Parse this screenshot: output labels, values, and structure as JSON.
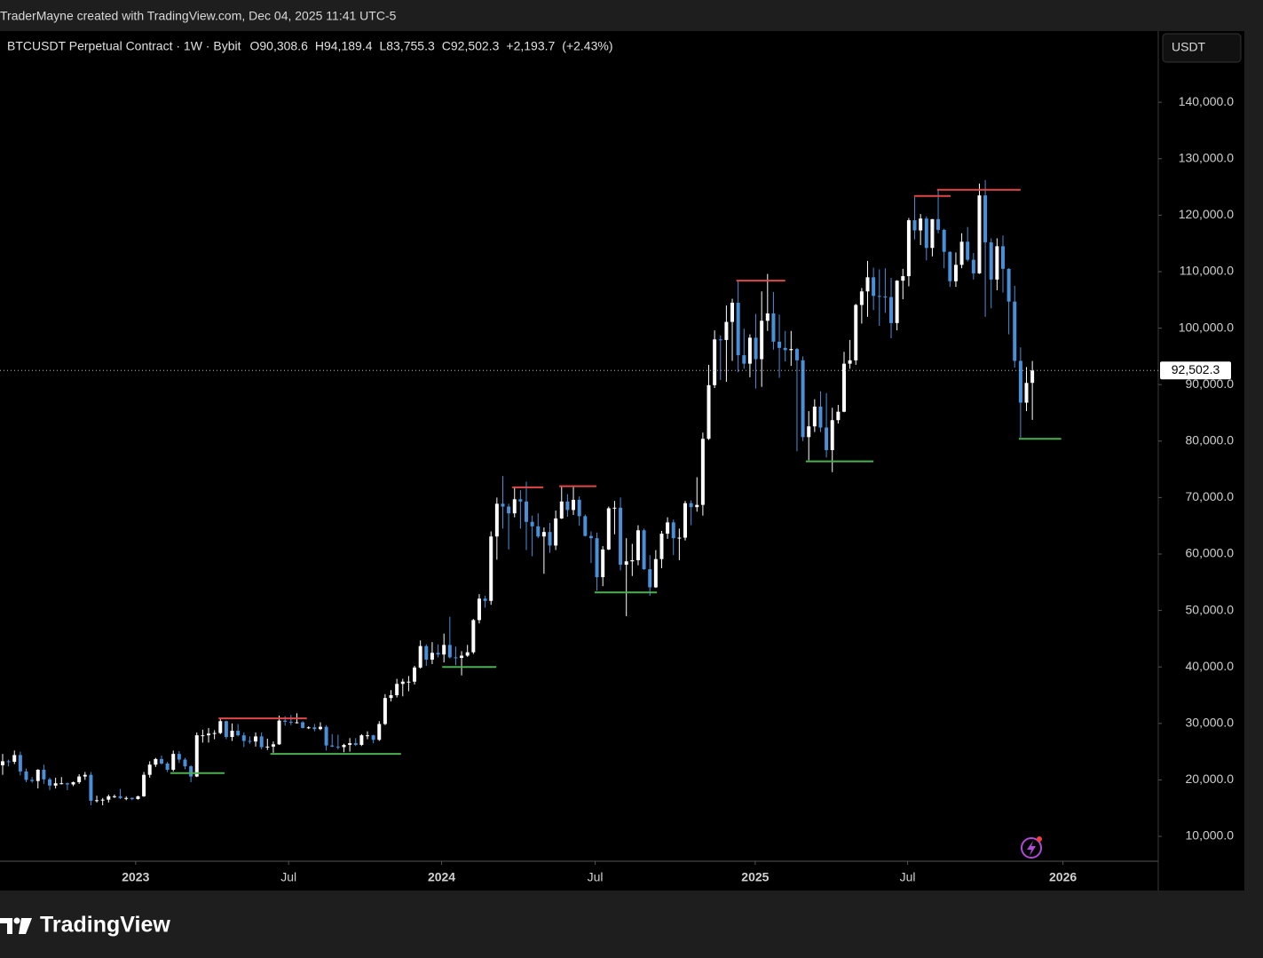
{
  "header": {
    "title": "TraderMayne created with TradingView.com, Dec 04, 2025 11:41 UTC-5"
  },
  "footer": {
    "logo": "TradingView"
  },
  "chart_data": {
    "type": "candlestick",
    "symbol": "BTCUSDT Perpetual Contract · 1W · Bybit",
    "legend_values": [
      {
        "value": 90308.6,
        "label": "O90,308.6"
      },
      {
        "value": 94189.4,
        "label": "H94,189.4"
      },
      {
        "value": 83755.3,
        "label": "L83,755.3"
      },
      {
        "value": 92502.3,
        "label": "C92,502.3"
      },
      {
        "value": 2193.7,
        "label": "+2,193.7"
      },
      {
        "value": 2.43,
        "label": "(+2.43%)"
      }
    ],
    "currency": "USDT",
    "up_color": "#ffffff",
    "down_color": "#4a90d9",
    "last_price": {
      "value": 92502.3,
      "label": "92,502.3"
    },
    "ylim": [
      5600,
      152600
    ],
    "yticks": [
      {
        "value": 10000,
        "label": "10,000.0"
      },
      {
        "value": 20000,
        "label": "20,000.0"
      },
      {
        "value": 30000,
        "label": "30,000.0"
      },
      {
        "value": 40000,
        "label": "40,000.0"
      },
      {
        "value": 50000,
        "label": "50,000.0"
      },
      {
        "value": 60000,
        "label": "60,000.0"
      },
      {
        "value": 70000,
        "label": "70,000.0"
      },
      {
        "value": 80000,
        "label": "80,000.0"
      },
      {
        "value": 90000,
        "label": "90,000.0"
      },
      {
        "value": 100000,
        "label": "100,000.0"
      },
      {
        "value": 110000,
        "label": "110,000.0"
      },
      {
        "value": 120000,
        "label": "120,000.0"
      },
      {
        "value": 130000,
        "label": "130,000.0"
      },
      {
        "value": 140000,
        "label": "140,000.0"
      }
    ],
    "xlim": [
      -0.45,
      196.4
    ],
    "xticks": [
      {
        "value": 22.6,
        "label": "2023"
      },
      {
        "value": 48.6,
        "label": "Jul"
      },
      {
        "value": 74.6,
        "label": "2024"
      },
      {
        "value": 100.7,
        "label": "Jul"
      },
      {
        "value": 127.9,
        "label": "2025"
      },
      {
        "value": 153.8,
        "label": "Jul"
      },
      {
        "value": 180.2,
        "label": "2026"
      }
    ],
    "levels": [
      {
        "value": 30900,
        "x": [
          36.7,
          51.7
        ],
        "color": "#e04848"
      },
      {
        "value": 21200,
        "x": [
          28.5,
          37.7
        ],
        "color": "#4caf50"
      },
      {
        "value": 24600,
        "x": [
          45.5,
          67.7
        ],
        "color": "#4caf50"
      },
      {
        "value": 40000,
        "x": [
          74.7,
          83.9
        ],
        "color": "#4caf50"
      },
      {
        "value": 71800,
        "x": [
          86.6,
          91.9
        ],
        "color": "#e04848"
      },
      {
        "value": 72000,
        "x": [
          94.6,
          100.9
        ],
        "color": "#e04848"
      },
      {
        "value": 53200,
        "x": [
          100.6,
          111.2
        ],
        "color": "#4caf50"
      },
      {
        "value": 108400,
        "x": [
          124.7,
          133
        ],
        "color": "#e04848"
      },
      {
        "value": 76400,
        "x": [
          136.5,
          148
        ],
        "color": "#4caf50"
      },
      {
        "value": 123400,
        "x": [
          154.9,
          161.1
        ],
        "color": "#e04848"
      },
      {
        "value": 124500,
        "x": [
          158.8,
          173
        ],
        "color": "#e04848"
      },
      {
        "value": 80400,
        "x": [
          172.7,
          179.9
        ],
        "color": "#4caf50"
      }
    ],
    "categories": [
      null,
      null,
      null,
      null,
      null,
      null,
      null,
      null,
      null,
      null,
      null,
      null,
      null,
      null,
      null,
      null,
      null,
      null,
      null,
      null,
      null,
      null,
      null,
      null,
      null,
      null,
      null,
      null,
      null,
      null,
      null,
      null,
      null,
      null,
      null,
      null,
      null,
      null,
      null,
      null,
      null,
      null,
      null,
      null,
      null,
      null,
      null,
      null,
      null,
      null,
      null,
      null,
      null,
      null,
      null,
      null,
      null,
      null,
      null,
      null,
      null,
      null,
      null,
      null,
      null,
      null,
      null,
      null,
      null,
      null,
      null,
      null,
      null,
      null,
      null,
      null,
      null,
      null,
      null,
      null,
      null,
      null,
      null,
      null,
      null,
      null,
      null,
      null,
      null,
      null,
      null,
      null,
      null,
      null,
      null,
      null,
      null,
      null,
      null,
      null,
      null,
      null,
      null,
      null,
      null,
      null,
      null,
      null,
      null,
      null,
      null,
      null,
      null,
      null,
      null,
      null,
      null,
      null,
      null,
      null,
      null,
      null,
      null,
      null,
      null,
      null,
      null,
      null,
      null,
      null,
      null,
      null,
      null,
      null,
      null,
      null,
      null,
      null,
      null,
      null,
      null,
      null,
      null,
      null,
      null,
      null,
      null,
      null,
      null,
      null,
      null,
      null,
      null,
      null,
      null,
      null,
      null,
      null,
      null,
      null,
      null,
      null,
      null,
      null,
      null,
      null,
      null,
      null,
      null,
      null,
      null,
      null,
      null,
      null,
      null,
      null
    ],
    "ohlc": [
      [
        22600,
        24600,
        20900,
        23300
      ],
      [
        23300,
        23600,
        22400,
        23200
      ],
      [
        23200,
        25200,
        22800,
        24400
      ],
      [
        24400,
        25000,
        20800,
        21500
      ],
      [
        21500,
        22000,
        19600,
        20000
      ],
      [
        20000,
        20500,
        19500,
        19800
      ],
      [
        19800,
        21900,
        18500,
        21800
      ],
      [
        21800,
        22700,
        19300,
        20100
      ],
      [
        20100,
        20400,
        18200,
        19000
      ],
      [
        19000,
        20400,
        18500,
        19400
      ],
      [
        19400,
        20500,
        19200,
        19400
      ],
      [
        19400,
        19500,
        18200,
        19200
      ],
      [
        19200,
        19700,
        18900,
        19600
      ],
      [
        19600,
        21000,
        19300,
        20600
      ],
      [
        20600,
        21400,
        20000,
        20900
      ],
      [
        20900,
        21400,
        15500,
        16300
      ],
      [
        16300,
        17200,
        16000,
        16400
      ],
      [
        16400,
        16800,
        15500,
        16500
      ],
      [
        16500,
        17400,
        16000,
        17100
      ],
      [
        17100,
        17400,
        16800,
        17100
      ],
      [
        17100,
        18400,
        16600,
        16800
      ],
      [
        16800,
        17100,
        16400,
        16800
      ],
      [
        16800,
        16900,
        16400,
        16600
      ],
      [
        16600,
        17200,
        16500,
        17100
      ],
      [
        17100,
        21400,
        17000,
        20900
      ],
      [
        20900,
        23300,
        20400,
        22700
      ],
      [
        22700,
        23900,
        22300,
        23700
      ],
      [
        23700,
        24300,
        22700,
        22900
      ],
      [
        22900,
        23200,
        21400,
        21800
      ],
      [
        21800,
        25200,
        21500,
        24600
      ],
      [
        24600,
        25100,
        23000,
        23600
      ],
      [
        23600,
        23900,
        21900,
        22400
      ],
      [
        22400,
        22600,
        19600,
        20600
      ],
      [
        20600,
        28400,
        20500,
        27900
      ],
      [
        27900,
        28900,
        26600,
        27900
      ],
      [
        27900,
        29200,
        26600,
        28200
      ],
      [
        28200,
        28800,
        27200,
        28300
      ],
      [
        28300,
        31000,
        28100,
        30400
      ],
      [
        30400,
        30500,
        27200,
        27600
      ],
      [
        27600,
        30000,
        26900,
        28700
      ],
      [
        28700,
        29900,
        27700,
        27900
      ],
      [
        27900,
        28400,
        25800,
        26900
      ],
      [
        26900,
        27700,
        26400,
        26800
      ],
      [
        26800,
        28400,
        25900,
        27700
      ],
      [
        27700,
        28400,
        25400,
        25800
      ],
      [
        25800,
        27300,
        25300,
        25900
      ],
      [
        25900,
        26800,
        24800,
        26300
      ],
      [
        26300,
        31400,
        26200,
        30500
      ],
      [
        30500,
        31300,
        29600,
        30300
      ],
      [
        30300,
        31500,
        29700,
        30200
      ],
      [
        30200,
        31800,
        30000,
        30200
      ],
      [
        30200,
        30400,
        29100,
        29200
      ],
      [
        29200,
        29500,
        29000,
        29300
      ],
      [
        29300,
        29900,
        28600,
        29000
      ],
      [
        29000,
        30200,
        28800,
        29400
      ],
      [
        29400,
        29700,
        25200,
        26100
      ],
      [
        26100,
        28100,
        25800,
        25900
      ],
      [
        25900,
        28000,
        25400,
        25800
      ],
      [
        25800,
        26400,
        24900,
        26200
      ],
      [
        26200,
        27400,
        25000,
        26500
      ],
      [
        26500,
        27400,
        26000,
        26200
      ],
      [
        26200,
        28100,
        26000,
        27900
      ],
      [
        27900,
        28600,
        27200,
        27900
      ],
      [
        27900,
        28000,
        26500,
        27100
      ],
      [
        27100,
        30400,
        26900,
        29900
      ],
      [
        29900,
        35200,
        29700,
        34500
      ],
      [
        34500,
        35900,
        33900,
        35000
      ],
      [
        35000,
        37900,
        34600,
        37000
      ],
      [
        37000,
        37900,
        34800,
        37400
      ],
      [
        37400,
        38400,
        35700,
        37400
      ],
      [
        37400,
        40200,
        36900,
        39900
      ],
      [
        39900,
        44700,
        39700,
        43700
      ],
      [
        43700,
        44000,
        40200,
        41300
      ],
      [
        41300,
        44400,
        40500,
        42500
      ],
      [
        42500,
        44000,
        41700,
        42200
      ],
      [
        42200,
        45900,
        40800,
        43900
      ],
      [
        43900,
        48900,
        41500,
        41700
      ],
      [
        41700,
        43600,
        40300,
        41600
      ],
      [
        41600,
        42800,
        38500,
        42000
      ],
      [
        42000,
        43900,
        41800,
        42600
      ],
      [
        42600,
        48500,
        42300,
        48300
      ],
      [
        48300,
        52900,
        47700,
        52100
      ],
      [
        52100,
        52600,
        50500,
        51700
      ],
      [
        51700,
        64000,
        51000,
        63100
      ],
      [
        63100,
        70000,
        59000,
        68900
      ],
      [
        68900,
        73800,
        64500,
        68400
      ],
      [
        68400,
        68900,
        60800,
        67200
      ],
      [
        67200,
        71700,
        66500,
        69700
      ],
      [
        69700,
        71300,
        64500,
        69300
      ],
      [
        69300,
        72800,
        60700,
        65700
      ],
      [
        65700,
        66800,
        59600,
        64900
      ],
      [
        64900,
        67200,
        62800,
        63100
      ],
      [
        63100,
        64700,
        56500,
        63900
      ],
      [
        63900,
        65500,
        60200,
        61500
      ],
      [
        61500,
        67700,
        60700,
        66300
      ],
      [
        66300,
        71900,
        66200,
        69300
      ],
      [
        69300,
        70600,
        66600,
        67800
      ],
      [
        67800,
        71900,
        66900,
        69600
      ],
      [
        69600,
        70200,
        65000,
        66700
      ],
      [
        66700,
        67000,
        63100,
        63200
      ],
      [
        63200,
        64000,
        58400,
        62800
      ],
      [
        62800,
        63800,
        53500,
        55900
      ],
      [
        55900,
        61400,
        54300,
        60800
      ],
      [
        60800,
        68400,
        60700,
        68100
      ],
      [
        68100,
        69400,
        63500,
        68200
      ],
      [
        68200,
        70000,
        57100,
        58100
      ],
      [
        58100,
        62800,
        49000,
        58700
      ],
      [
        58700,
        61800,
        56100,
        58900
      ],
      [
        58900,
        65100,
        58000,
        64200
      ],
      [
        64200,
        64500,
        57200,
        57300
      ],
      [
        57300,
        59800,
        52600,
        54100
      ],
      [
        54100,
        60700,
        54000,
        59100
      ],
      [
        59100,
        64100,
        57500,
        63600
      ],
      [
        63600,
        66500,
        62700,
        65600
      ],
      [
        65600,
        66100,
        59800,
        62800
      ],
      [
        62800,
        64500,
        58900,
        62900
      ],
      [
        62900,
        69400,
        62400,
        69000
      ],
      [
        69000,
        69500,
        65100,
        68300
      ],
      [
        68300,
        73600,
        67500,
        68700
      ],
      [
        68700,
        81500,
        66800,
        80400
      ],
      [
        80400,
        93500,
        80200,
        89900
      ],
      [
        89900,
        99600,
        89400,
        98000
      ],
      [
        98000,
        98700,
        90800,
        97900
      ],
      [
        97900,
        104000,
        90500,
        101100
      ],
      [
        101100,
        105200,
        94200,
        104500
      ],
      [
        104500,
        108400,
        92200,
        95200
      ],
      [
        95200,
        99900,
        92800,
        93700
      ],
      [
        93700,
        98900,
        91300,
        98300
      ],
      [
        98300,
        102500,
        89300,
        94500
      ],
      [
        94500,
        106500,
        89600,
        101300
      ],
      [
        101300,
        109600,
        99500,
        102600
      ],
      [
        102600,
        106400,
        96200,
        97600
      ],
      [
        97600,
        102400,
        91200,
        96500
      ],
      [
        96500,
        99500,
        94100,
        96100
      ],
      [
        96100,
        99500,
        93300,
        96300
      ],
      [
        96300,
        96500,
        78200,
        94300
      ],
      [
        94300,
        95000,
        80000,
        80700
      ],
      [
        80700,
        85300,
        76600,
        82600
      ],
      [
        82600,
        87400,
        81600,
        86100
      ],
      [
        86100,
        88800,
        81600,
        82400
      ],
      [
        82400,
        88500,
        77100,
        78400
      ],
      [
        78400,
        85900,
        74500,
        83700
      ],
      [
        83700,
        86400,
        83100,
        85200
      ],
      [
        85200,
        95800,
        85100,
        93700
      ],
      [
        93700,
        97900,
        92800,
        94300
      ],
      [
        94300,
        104300,
        93500,
        104100
      ],
      [
        104100,
        107100,
        100800,
        106500
      ],
      [
        106500,
        111900,
        102000,
        109000
      ],
      [
        109000,
        110700,
        103200,
        105700
      ],
      [
        105700,
        110400,
        100400,
        105600
      ],
      [
        105600,
        110600,
        102700,
        105500
      ],
      [
        105500,
        108900,
        98200,
        100900
      ],
      [
        100900,
        108500,
        99600,
        108400
      ],
      [
        108400,
        110500,
        105100,
        109200
      ],
      [
        109200,
        119500,
        107400,
        119100
      ],
      [
        119100,
        123200,
        115700,
        117300
      ],
      [
        117300,
        120200,
        114700,
        119400
      ],
      [
        119400,
        119800,
        112000,
        114200
      ],
      [
        114200,
        119300,
        112700,
        119300
      ],
      [
        119300,
        124500,
        116800,
        117400
      ],
      [
        117400,
        117600,
        110600,
        113500
      ],
      [
        113500,
        113600,
        107300,
        108300
      ],
      [
        108300,
        113400,
        107300,
        111200
      ],
      [
        111200,
        116800,
        110600,
        115300
      ],
      [
        115300,
        117900,
        111800,
        112100
      ],
      [
        112100,
        113300,
        108600,
        109700
      ],
      [
        109700,
        125600,
        109600,
        123500
      ],
      [
        123500,
        126200,
        102000,
        115200
      ],
      [
        115200,
        115900,
        103500,
        108600
      ],
      [
        108600,
        115900,
        106700,
        114500
      ],
      [
        114500,
        116400,
        106300,
        110500
      ],
      [
        110500,
        110600,
        98900,
        104700
      ],
      [
        104700,
        107500,
        93000,
        94200
      ],
      [
        94200,
        96600,
        80600,
        86800
      ],
      [
        86800,
        93100,
        85300,
        90300
      ],
      [
        90308.6,
        94189.4,
        83755.3,
        92502.3
      ]
    ]
  }
}
